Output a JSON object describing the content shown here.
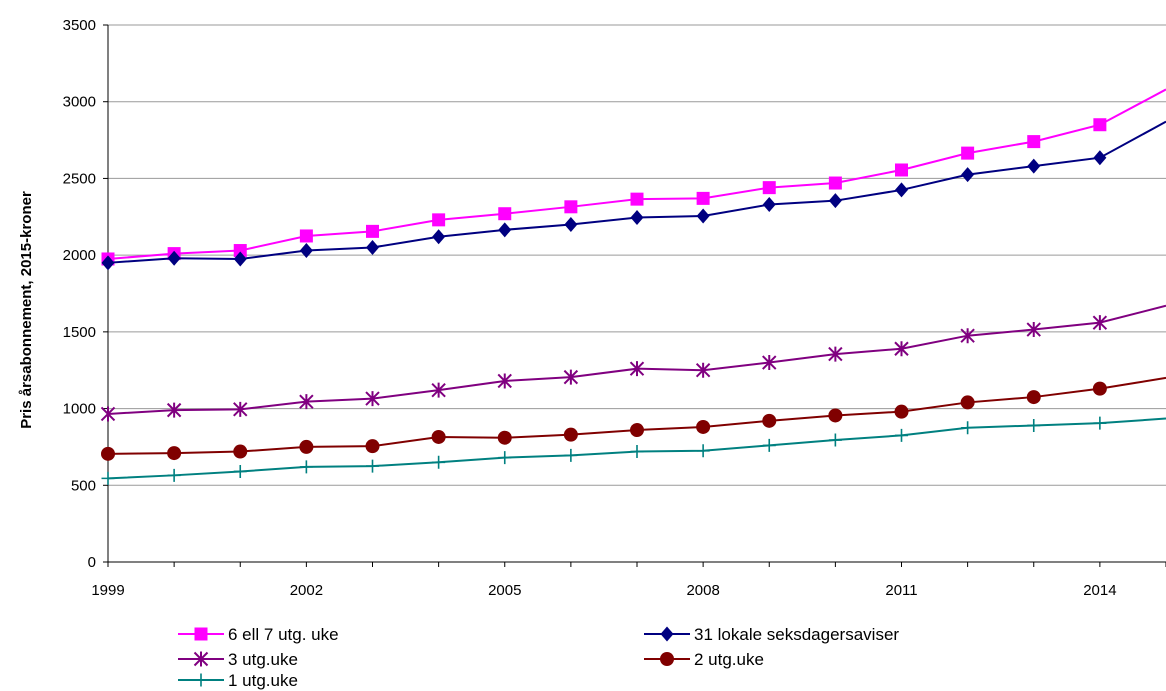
{
  "chart_data": {
    "type": "line",
    "title": "",
    "xlabel": "",
    "ylabel": "Pris årsabonnement, 2015-kroner",
    "xlim": [
      1999,
      2015
    ],
    "ylim": [
      0,
      3500
    ],
    "y_ticks": [
      0,
      500,
      1000,
      1500,
      2000,
      2500,
      3000,
      3500
    ],
    "x_ticks": [
      1999,
      2002,
      2005,
      2008,
      2011,
      2014
    ],
    "grid": "horizontal",
    "legend_position": "bottom",
    "x": [
      1999,
      2000,
      2001,
      2002,
      2003,
      2004,
      2005,
      2006,
      2007,
      2008,
      2009,
      2010,
      2011,
      2012,
      2013,
      2014,
      2015
    ],
    "series": [
      {
        "name": "6 ell 7 utg. uke",
        "color": "#FF00FF",
        "marker": "square",
        "values": [
          1975,
          2010,
          2030,
          2125,
          2155,
          2230,
          2270,
          2315,
          2365,
          2370,
          2440,
          2470,
          2555,
          2665,
          2740,
          2850,
          3080
        ]
      },
      {
        "name": "31 lokale seksdagersaviser",
        "color": "#000080",
        "marker": "diamond",
        "values": [
          1950,
          1980,
          1975,
          2030,
          2050,
          2120,
          2165,
          2200,
          2245,
          2255,
          2330,
          2355,
          2425,
          2525,
          2580,
          2635,
          2870
        ]
      },
      {
        "name": "3 utg.uke",
        "color": "#800080",
        "marker": "star",
        "values": [
          965,
          990,
          995,
          1045,
          1065,
          1120,
          1180,
          1205,
          1260,
          1250,
          1300,
          1355,
          1390,
          1475,
          1515,
          1560,
          1670
        ]
      },
      {
        "name": "2 utg.uke",
        "color": "#800000",
        "marker": "circle",
        "values": [
          705,
          710,
          720,
          750,
          755,
          815,
          810,
          830,
          860,
          880,
          920,
          955,
          980,
          1040,
          1075,
          1130,
          1200
        ]
      },
      {
        "name": "1 utg.uke",
        "color": "#008080",
        "marker": "plus",
        "values": [
          545,
          565,
          590,
          620,
          625,
          650,
          680,
          695,
          720,
          725,
          760,
          795,
          825,
          875,
          890,
          905,
          935
        ]
      }
    ]
  }
}
